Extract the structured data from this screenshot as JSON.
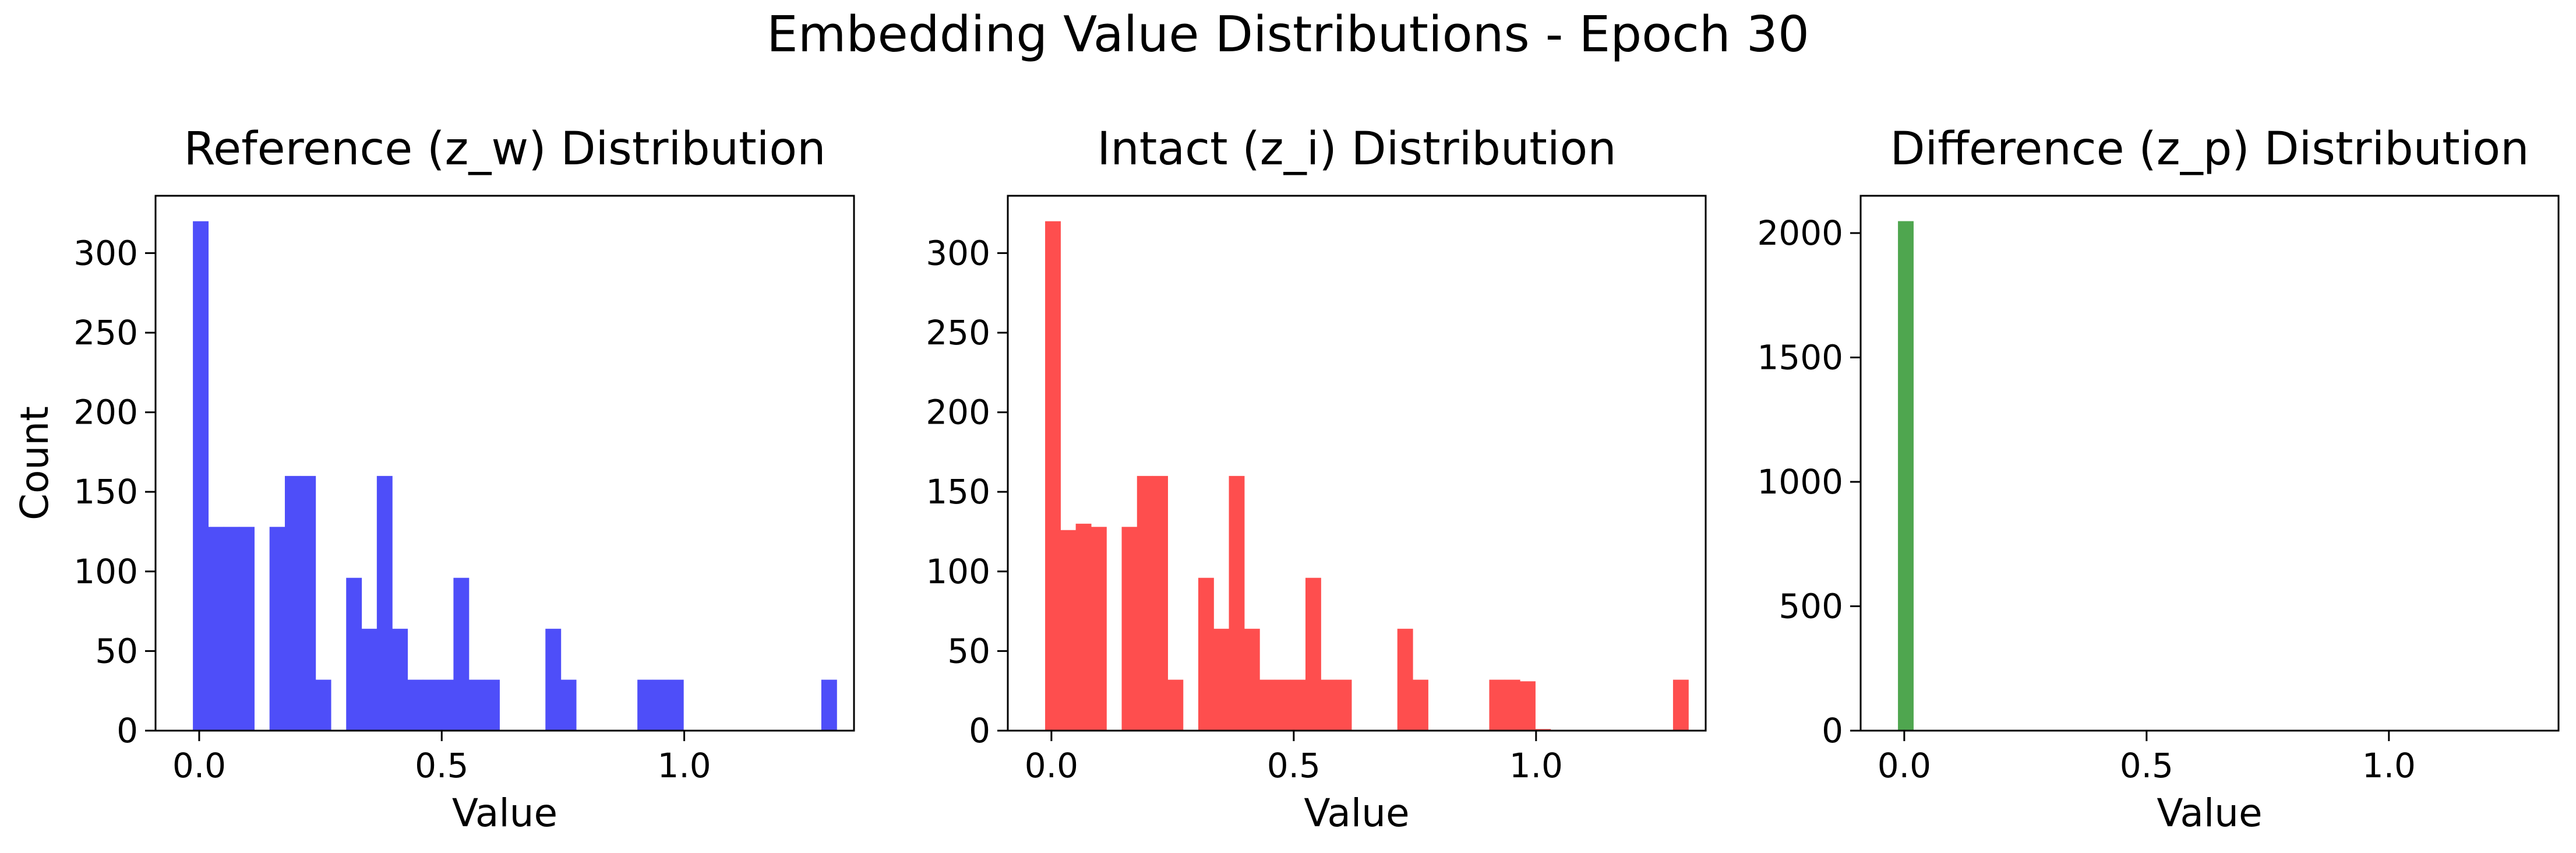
{
  "figure": {
    "title": "Embedding Value Distributions - Epoch 30"
  },
  "chart_data": [
    {
      "type": "bar",
      "title": "Reference (z_w) Distribution",
      "xlabel": "Value",
      "ylabel": "Count",
      "color": "#4e4ef9",
      "xlim": [
        -0.09,
        1.35
      ],
      "ylim": [
        0,
        336
      ],
      "xticks": [
        "0.0",
        "0.5",
        "1.0"
      ],
      "xtick_values": [
        0,
        0.5,
        1.0
      ],
      "yticks": [
        "0",
        "50",
        "100",
        "150",
        "200",
        "250",
        "300"
      ],
      "ytick_values": [
        0,
        50,
        100,
        150,
        200,
        250,
        300
      ],
      "bin_start": -0.013,
      "bin_width": 0.0316,
      "counts": [
        320,
        128,
        128,
        128,
        0,
        128,
        160,
        160,
        32,
        0,
        96,
        64,
        160,
        64,
        32,
        32,
        32,
        96,
        32,
        32,
        0,
        0,
        0,
        64,
        32,
        0,
        0,
        0,
        0,
        32,
        32,
        32,
        0,
        0,
        0,
        0,
        0,
        0,
        0,
        0,
        0,
        32,
        0
      ]
    },
    {
      "type": "bar",
      "title": "Intact (z_i) Distribution",
      "xlabel": "Value",
      "ylabel": "",
      "color": "#fe4e4e",
      "xlim": [
        -0.09,
        1.35
      ],
      "ylim": [
        0,
        336
      ],
      "xticks": [
        "0.0",
        "0.5",
        "1.0"
      ],
      "xtick_values": [
        0,
        0.5,
        1.0
      ],
      "yticks": [
        "0",
        "50",
        "100",
        "150",
        "200",
        "250",
        "300"
      ],
      "ytick_values": [
        0,
        50,
        100,
        150,
        200,
        250,
        300
      ],
      "bin_start": -0.013,
      "bin_width": 0.0316,
      "counts": [
        320,
        126,
        130,
        128,
        0,
        128,
        160,
        160,
        32,
        0,
        96,
        64,
        160,
        64,
        32,
        32,
        32,
        96,
        32,
        32,
        0,
        0,
        0,
        64,
        32,
        0,
        0,
        0,
        0,
        32,
        32,
        31,
        1,
        0,
        0,
        0,
        0,
        0,
        0,
        0,
        0,
        32,
        0
      ]
    },
    {
      "type": "bar",
      "title": "Difference (z_p) Distribution",
      "xlabel": "Value",
      "ylabel": "",
      "color": "#4fa64f",
      "xlim": [
        -0.09,
        1.35
      ],
      "ylim": [
        0,
        2150
      ],
      "xticks": [
        "0.0",
        "0.5",
        "1.0"
      ],
      "xtick_values": [
        0,
        0.5,
        1.0
      ],
      "yticks": [
        "0",
        "500",
        "1000",
        "1500",
        "2000"
      ],
      "ytick_values": [
        0,
        500,
        1000,
        1500,
        2000
      ],
      "bin_start": -0.013,
      "bin_width": 0.0316,
      "counts": [
        2048
      ]
    }
  ]
}
